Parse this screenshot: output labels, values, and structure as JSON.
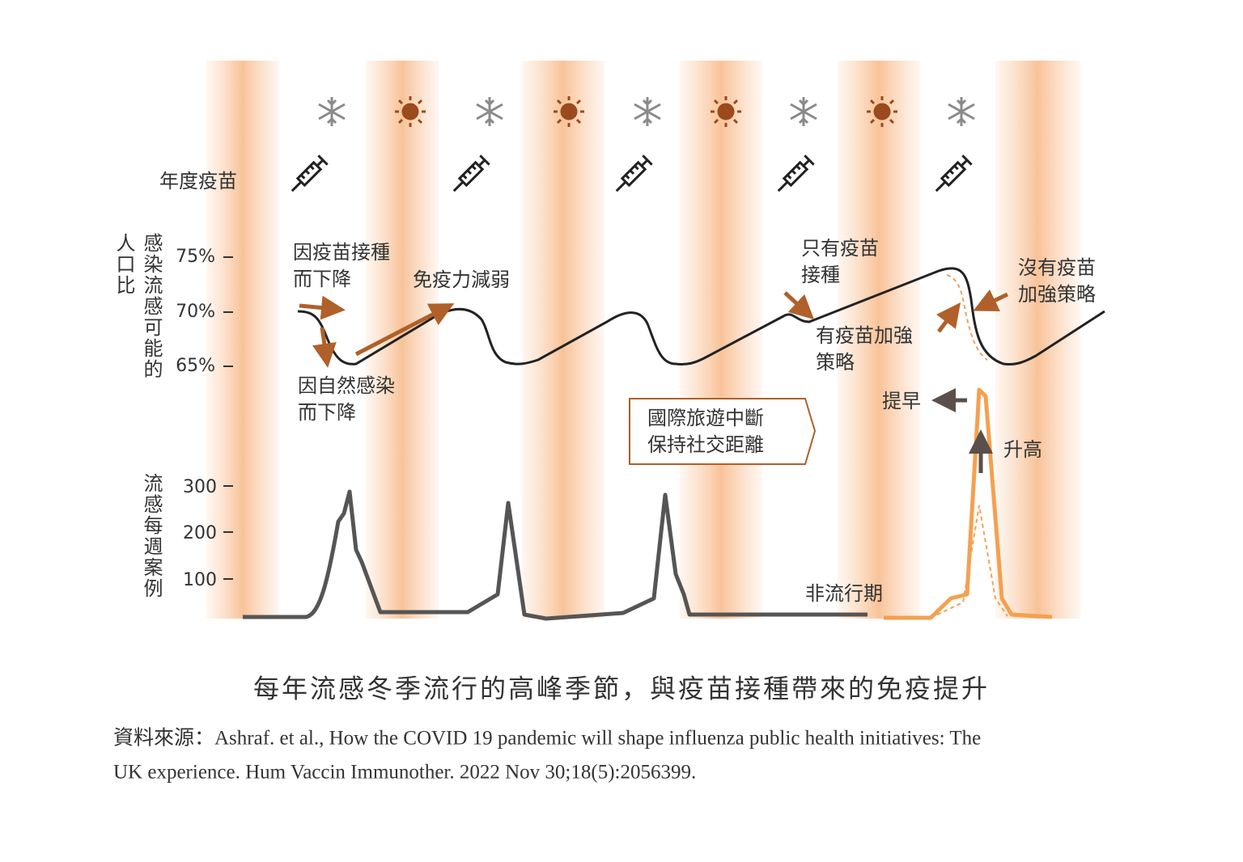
{
  "header": {
    "vaccine_label": "年度疫苗"
  },
  "upper_axis": {
    "label_line1": "人口比",
    "label_line2": "感染流感可能的",
    "ticks": [
      "75%",
      "70%",
      "65%"
    ]
  },
  "lower_axis": {
    "label": "流感每週案例",
    "ticks": [
      "300",
      "200",
      "100"
    ]
  },
  "annotations": [
    {
      "lines": [
        "因疫苗接種",
        "而下降"
      ]
    },
    {
      "lines": [
        "因自然感染",
        "而下降"
      ]
    },
    {
      "lines": [
        "免疫力減弱"
      ]
    },
    {
      "lines": [
        "只有疫苗",
        "接種"
      ]
    },
    {
      "lines": [
        "有疫苗加強",
        "策略"
      ]
    },
    {
      "lines": [
        "沒有疫苗",
        "加強策略"
      ]
    },
    {
      "lines": [
        "提早"
      ]
    },
    {
      "lines": [
        "升高"
      ]
    },
    {
      "lines": [
        "非流行期"
      ]
    }
  ],
  "box": {
    "lines": [
      "國際旅遊中斷",
      "保持社交距離"
    ]
  },
  "caption": "每年流感冬季流行的高峰季節，與疫苗接種帶來的免疫提升",
  "source": {
    "line1": "資料來源：Ashraf. et al.,  How the COVID 19 pandemic will shape influenza public health initiatives: The",
    "line2": "UK experience. Hum Vaccin Immunother. 2022 Nov 30;18(5):2056399."
  }
}
